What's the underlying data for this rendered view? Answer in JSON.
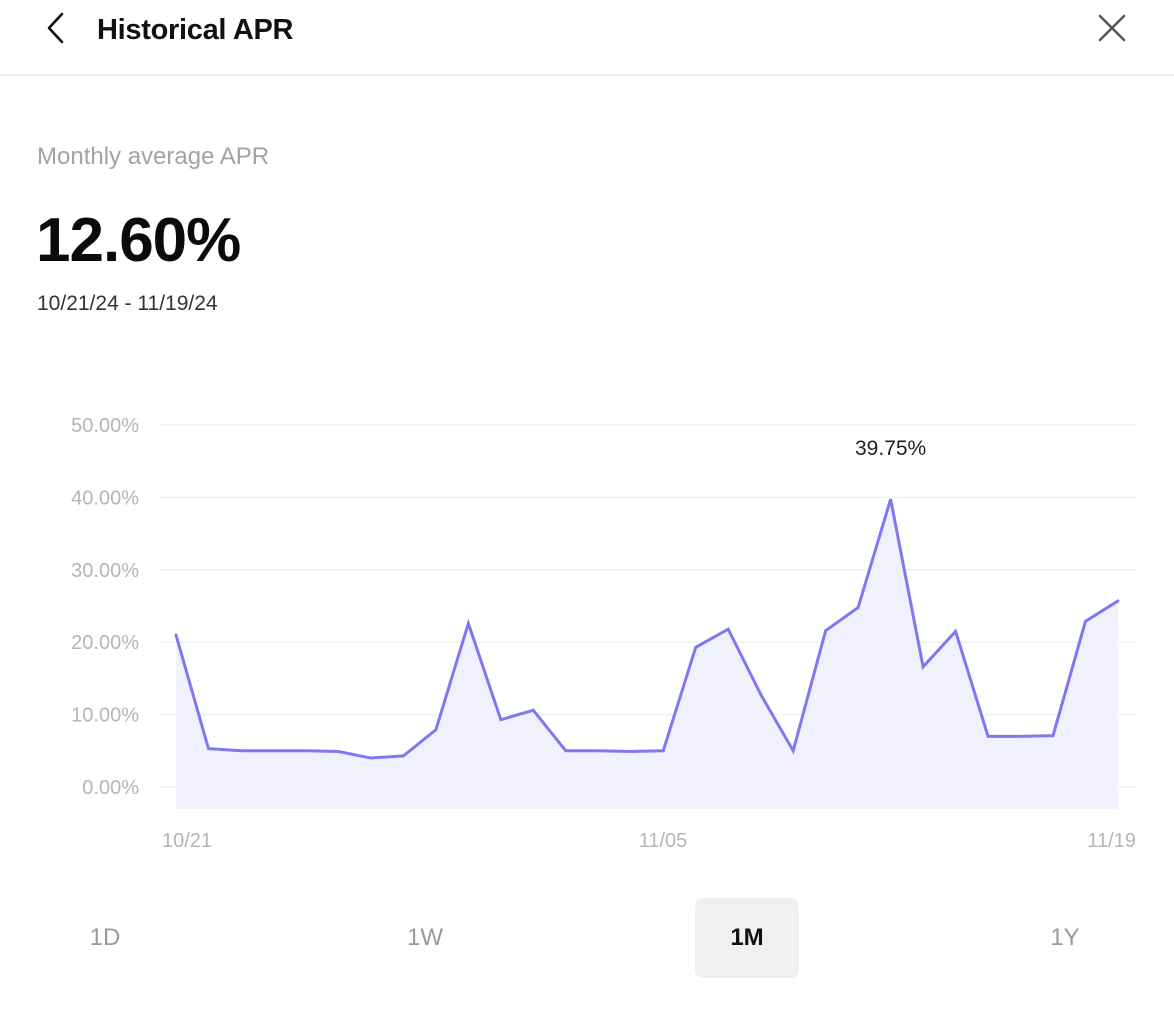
{
  "header": {
    "title": "Historical APR",
    "back_icon": "chevron-left-icon",
    "close_icon": "close-icon"
  },
  "summary": {
    "label": "Monthly average APR",
    "value": "12.60%",
    "date_range": "10/21/24 - 11/19/24"
  },
  "chart_data": {
    "type": "area",
    "title": "",
    "xlabel": "",
    "ylabel": "",
    "x": [
      "10/21",
      "10/22",
      "10/23",
      "10/24",
      "10/25",
      "10/26",
      "10/27",
      "10/28",
      "10/29",
      "10/30",
      "10/31",
      "11/01",
      "11/02",
      "11/03",
      "11/04",
      "11/05",
      "11/06",
      "11/07",
      "11/08",
      "11/09",
      "11/10",
      "11/11",
      "11/12",
      "11/13",
      "11/14",
      "11/15",
      "11/16",
      "11/17",
      "11/18",
      "11/19"
    ],
    "values": [
      21.0,
      5.3,
      5.0,
      5.0,
      5.0,
      4.9,
      4.0,
      4.3,
      7.9,
      22.6,
      9.3,
      10.6,
      5.0,
      5.0,
      4.9,
      5.0,
      19.3,
      21.8,
      12.8,
      5.0,
      21.6,
      24.8,
      39.75,
      16.6,
      21.5,
      7.0,
      7.0,
      7.1,
      22.9,
      25.7
    ],
    "ylim": [
      0,
      50
    ],
    "y_ticks": [
      "0.00%",
      "10.00%",
      "20.00%",
      "30.00%",
      "40.00%",
      "50.00%"
    ],
    "x_tick_labels": [
      "10/21",
      "11/05",
      "11/19"
    ],
    "annotation": {
      "label": "39.75%",
      "x": "11/12",
      "value": 39.75
    },
    "grid": true,
    "line_color": "#8078f0",
    "fill_color": "#f1f0fd",
    "grid_color": "#f0f0f0",
    "tick_color": "#b5b5b5"
  },
  "range_tabs": [
    {
      "label": "1D",
      "active": false
    },
    {
      "label": "1W",
      "active": false
    },
    {
      "label": "1M",
      "active": true
    },
    {
      "label": "1Y",
      "active": false
    }
  ]
}
